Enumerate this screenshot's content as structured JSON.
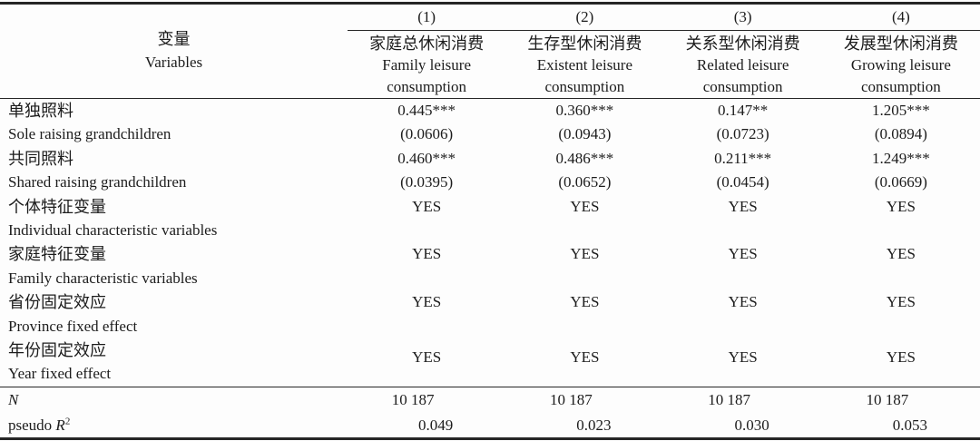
{
  "table": {
    "header": {
      "row_label": {
        "zh": "变量",
        "en": "Variables"
      },
      "col_numbers": [
        "(1)",
        "(2)",
        "(3)",
        "(4)"
      ],
      "col_names": [
        {
          "zh": "家庭总休闲消费",
          "en1": "Family leisure",
          "en2": "consumption"
        },
        {
          "zh": "生存型休闲消费",
          "en1": "Existent leisure",
          "en2": "consumption"
        },
        {
          "zh": "关系型休闲消费",
          "en1": "Related leisure",
          "en2": "consumption"
        },
        {
          "zh": "发展型休闲消费",
          "en1": "Growing leisure",
          "en2": "consumption"
        }
      ]
    },
    "body": [
      {
        "label_zh": "单独照料",
        "label_en": "Sole raising grandchildren",
        "values": [
          "0.445***",
          "0.360***",
          "0.147**",
          "1.205***"
        ],
        "se": [
          "(0.0606)",
          "(0.0943)",
          "(0.0723)",
          "(0.0894)"
        ]
      },
      {
        "label_zh": "共同照料",
        "label_en": "Shared raising grandchildren",
        "values": [
          "0.460***",
          "0.486***",
          "0.211***",
          "1.249***"
        ],
        "se": [
          "(0.0395)",
          "(0.0652)",
          "(0.0454)",
          "(0.0669)"
        ]
      },
      {
        "label_zh": "个体特征变量",
        "label_en": "Individual characteristic variables",
        "values": [
          "YES",
          "YES",
          "YES",
          "YES"
        ]
      },
      {
        "label_zh": "家庭特征变量",
        "label_en": "Family characteristic variables",
        "values": [
          "YES",
          "YES",
          "YES",
          "YES"
        ]
      },
      {
        "label_zh": "省份固定效应",
        "label_en": "Province fixed effect",
        "values": [
          "YES",
          "YES",
          "YES",
          "YES"
        ]
      },
      {
        "label_zh": "年份固定效应",
        "label_en": "Year fixed effect",
        "values": [
          "YES",
          "YES",
          "YES",
          "YES"
        ]
      }
    ],
    "stats": [
      {
        "label": "N",
        "values": [
          "10 187",
          "10 187",
          "10 187",
          "10 187"
        ]
      },
      {
        "label_prefix": "pseudo ",
        "label_italic": "R",
        "label_sup": "2",
        "values": [
          "0.049",
          "0.023",
          "0.030",
          "0.053"
        ]
      }
    ]
  }
}
